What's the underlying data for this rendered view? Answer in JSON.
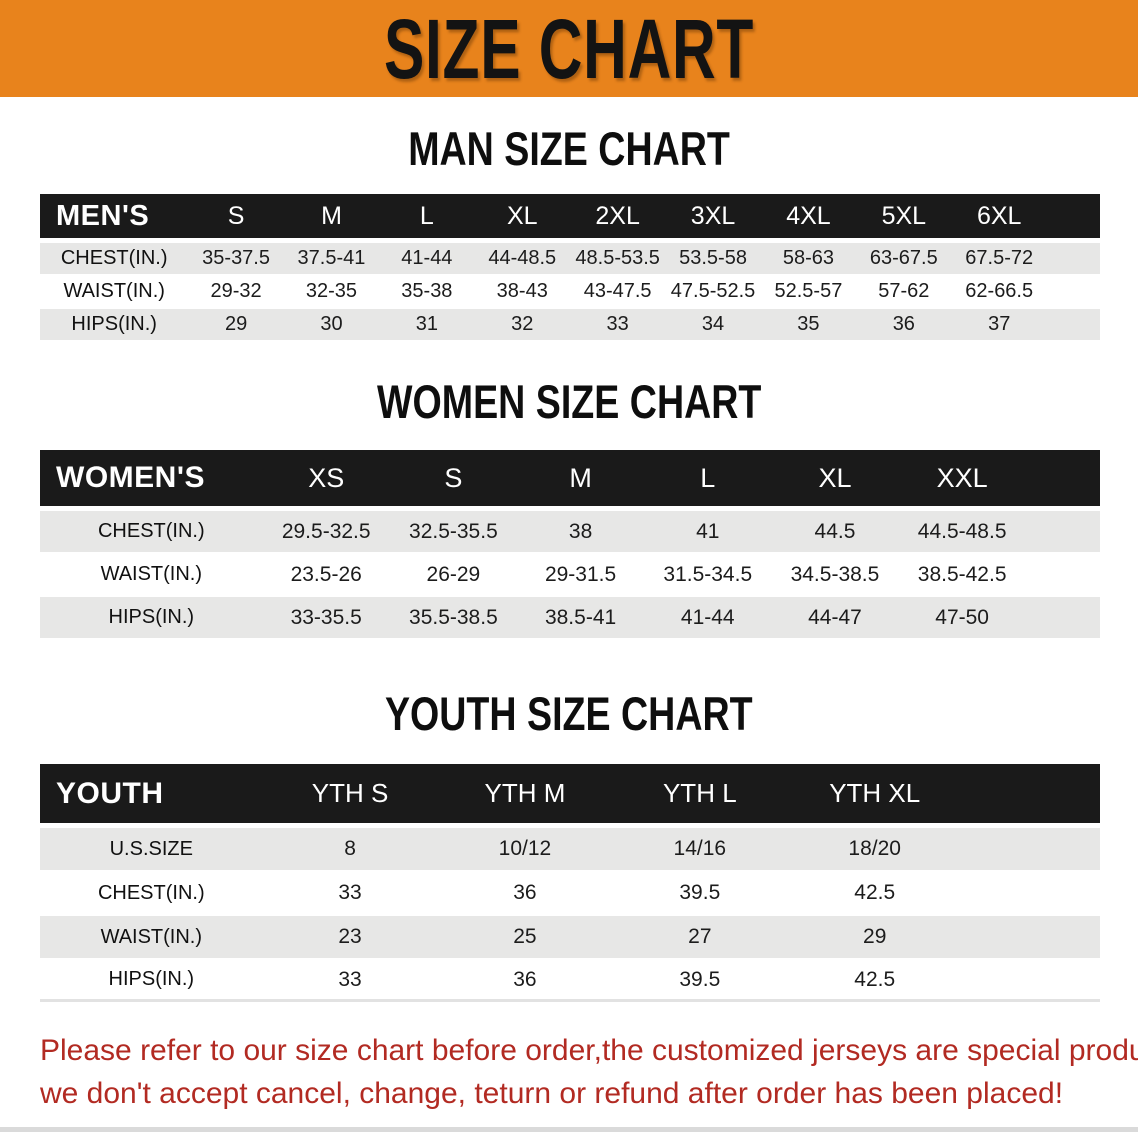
{
  "banner": {
    "title": "SIZE CHART",
    "bg_color": "#E8831C"
  },
  "sections": [
    {
      "id": "men",
      "title": "MAN SIZE CHART",
      "table": {
        "header_label": "MEN'S",
        "columns": [
          "S",
          "M",
          "L",
          "XL",
          "2XL",
          "3XL",
          "4XL",
          "5XL",
          "6XL"
        ],
        "rows": [
          {
            "label": "CHEST(IN.)",
            "shade": "gray",
            "values": [
              "35-37.5",
              "37.5-41",
              "41-44",
              "44-48.5",
              "48.5-53.5",
              "53.5-58",
              "58-63",
              "63-67.5",
              "67.5-72"
            ]
          },
          {
            "label": "WAIST(IN.)",
            "shade": "white",
            "values": [
              "29-32",
              "32-35",
              "35-38",
              "38-43",
              "43-47.5",
              "47.5-52.5",
              "52.5-57",
              "57-62",
              "62-66.5"
            ]
          },
          {
            "label": "HIPS(IN.)",
            "shade": "gray",
            "values": [
              "29",
              "30",
              "31",
              "32",
              "33",
              "34",
              "35",
              "36",
              "37"
            ]
          }
        ]
      }
    },
    {
      "id": "women",
      "title": "WOMEN SIZE CHART",
      "table": {
        "header_label": "WOMEN'S",
        "columns": [
          "XS",
          "S",
          "M",
          "L",
          "XL",
          "XXL"
        ],
        "rows": [
          {
            "label": "CHEST(IN.)",
            "shade": "gray",
            "values": [
              "29.5-32.5",
              "32.5-35.5",
              "38",
              "41",
              "44.5",
              "44.5-48.5"
            ]
          },
          {
            "label": "WAIST(IN.)",
            "shade": "white",
            "values": [
              "23.5-26",
              "26-29",
              "29-31.5",
              "31.5-34.5",
              "34.5-38.5",
              "38.5-42.5"
            ]
          },
          {
            "label": "HIPS(IN.)",
            "shade": "gray",
            "values": [
              "33-35.5",
              "35.5-38.5",
              "38.5-41",
              "41-44",
              "44-47",
              "47-50"
            ]
          }
        ]
      }
    },
    {
      "id": "youth",
      "title": "YOUTH SIZE CHART",
      "table": {
        "header_label": "YOUTH",
        "columns": [
          "YTH S",
          "YTH M",
          "YTH L",
          "YTH XL"
        ],
        "rows": [
          {
            "label": "U.S.SIZE",
            "shade": "gray",
            "values": [
              "8",
              "10/12",
              "14/16",
              "18/20"
            ]
          },
          {
            "label": "CHEST(IN.)",
            "shade": "white",
            "values": [
              "33",
              "36",
              "39.5",
              "42.5"
            ]
          },
          {
            "label": "WAIST(IN.)",
            "shade": "gray",
            "values": [
              "23",
              "25",
              "27",
              "29"
            ]
          },
          {
            "label": "HIPS(IN.)",
            "shade": "white",
            "values": [
              "33",
              "36",
              "39.5",
              "42.5"
            ]
          }
        ]
      }
    }
  ],
  "footer": {
    "color": "#B22A22",
    "lines": [
      "Please refer to our size chart before order,the customized jerseys are special products,",
      "we don't accept cancel, change, teturn or refund after order has been placed!"
    ]
  }
}
